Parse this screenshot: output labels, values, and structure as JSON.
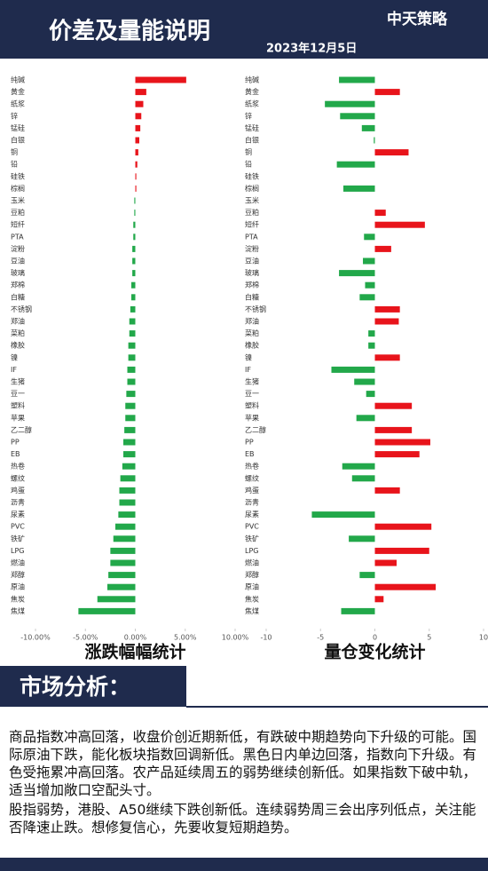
{
  "header": {
    "title": "价差及量能说明",
    "date": "2023年12月5日",
    "logo": "中天策略"
  },
  "chart_data": [
    {
      "type": "hbar",
      "subtitle": "涨跌幅幅统计",
      "categories": [
        "纯碱",
        "黄金",
        "纸浆",
        "锌",
        "锰硅",
        "白银",
        "铜",
        "铅",
        "硅铁",
        "棕榈",
        "玉米",
        "豆粕",
        "短纤",
        "PTA",
        "淀粉",
        "豆油",
        "玻璃",
        "郑棉",
        "白糖",
        "不锈钢",
        "郑油",
        "菜粕",
        "橡胶",
        "镍",
        "IF",
        "生猪",
        "豆一",
        "塑料",
        "苹果",
        "乙二醇",
        "PP",
        "EB",
        "热卷",
        "螺纹",
        "鸡蛋",
        "沥青",
        "尿素",
        "PVC",
        "铁矿",
        "LPG",
        "燃油",
        "郑醇",
        "原油",
        "焦炭",
        "焦煤"
      ],
      "values": [
        5.1,
        1.1,
        0.8,
        0.6,
        0.5,
        0.4,
        0.3,
        0.2,
        0.1,
        0.1,
        -0.1,
        -0.1,
        -0.2,
        -0.2,
        -0.3,
        -0.3,
        -0.3,
        -0.4,
        -0.4,
        -0.5,
        -0.6,
        -0.6,
        -0.7,
        -0.7,
        -0.8,
        -0.8,
        -0.9,
        -1.0,
        -1.0,
        -1.1,
        -1.2,
        -1.2,
        -1.3,
        -1.5,
        -1.6,
        -1.6,
        -1.7,
        -2.0,
        -2.2,
        -2.5,
        -2.5,
        -2.7,
        -2.8,
        -3.8,
        -5.7
      ],
      "positive_color": "#e8141b",
      "negative_color": "#22a84a",
      "xlim": [
        -10,
        10
      ],
      "xticks": [
        {
          "value": -10,
          "label": "-10.00%"
        },
        {
          "value": -5,
          "label": "-5.00%"
        },
        {
          "value": 0,
          "label": "0.00%"
        },
        {
          "value": 5,
          "label": "5.00%"
        },
        {
          "value": 10,
          "label": "10.00%"
        }
      ]
    },
    {
      "type": "hbar",
      "subtitle": "量仓变化统计",
      "categories": [
        "纯碱",
        "黄金",
        "纸浆",
        "锌",
        "锰硅",
        "白银",
        "铜",
        "铅",
        "硅铁",
        "棕榈",
        "玉米",
        "豆粕",
        "短纤",
        "PTA",
        "淀粉",
        "豆油",
        "玻璃",
        "郑棉",
        "白糖",
        "不锈钢",
        "郑油",
        "菜粕",
        "橡胶",
        "镍",
        "IF",
        "生猪",
        "豆一",
        "塑料",
        "苹果",
        "乙二醇",
        "PP",
        "EB",
        "热卷",
        "螺纹",
        "鸡蛋",
        "沥青",
        "尿素",
        "PVC",
        "铁矿",
        "LPG",
        "燃油",
        "郑醇",
        "原油",
        "焦炭",
        "焦煤"
      ],
      "values": [
        -3.3,
        2.3,
        -4.6,
        -3.2,
        -1.2,
        -0.1,
        3.1,
        -3.5,
        0,
        -2.9,
        0,
        1.0,
        4.6,
        -1.0,
        1.5,
        -1.1,
        -3.3,
        -0.9,
        -1.4,
        2.3,
        2.2,
        -0.6,
        -0.6,
        2.3,
        -4.0,
        -1.9,
        -0.8,
        3.4,
        -1.7,
        3.4,
        5.1,
        4.1,
        -3.0,
        -2.1,
        2.3,
        0,
        -5.8,
        5.2,
        -2.4,
        5.0,
        2.0,
        -1.4,
        5.6,
        0.8,
        -3.1
      ],
      "positive_color": "#e8141b",
      "negative_color": "#22a84a",
      "xlim": [
        -10,
        10
      ],
      "xticks": [
        -10,
        -5,
        0,
        5,
        10
      ]
    }
  ],
  "analysis": {
    "heading": "市场分析：",
    "paragraphs": [
      "商品指数冲高回落，收盘价创近期新低，有跌破中期趋势向下升级的可能。国际原油下跌，能化板块指数回调新低。黑色日内单边回落，指数向下升级。有色受拖累冲高回落。农产品延续周五的弱势继续创新低。如果指数下破中轨，适当增加敞口空配头寸。",
      "股指弱势，港股、A50继续下跌创新低。连续弱势周三会出序列低点，关注能否降速止跌。想修复信心，先要收复短期趋势。"
    ]
  }
}
